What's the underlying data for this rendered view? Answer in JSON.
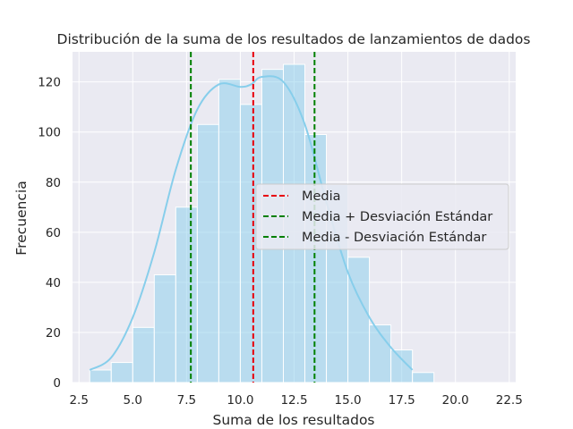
{
  "chart_data": {
    "type": "bar",
    "title": "Distribución de la suma de los resultados de lanzamientos de dados",
    "xlabel": "Suma de los resultados",
    "ylabel": "Frecuencia",
    "xlim": [
      2.2,
      22.8
    ],
    "ylim": [
      0,
      132
    ],
    "xticks": [
      2.5,
      5.0,
      7.5,
      10.0,
      12.5,
      15.0,
      17.5,
      20.0,
      22.5
    ],
    "xtick_labels": [
      "2.5",
      "5.0",
      "7.5",
      "10.0",
      "12.5",
      "15.0",
      "17.5",
      "20.0",
      "22.5"
    ],
    "yticks": [
      0,
      20,
      40,
      60,
      80,
      100,
      120
    ],
    "ytick_labels": [
      "0",
      "20",
      "40",
      "60",
      "80",
      "100",
      "120"
    ],
    "grid": true,
    "bin_edges": [
      3,
      4,
      5,
      6,
      7,
      8,
      9,
      10,
      11,
      12,
      13,
      14,
      15,
      16,
      17,
      18,
      19,
      20,
      21,
      22
    ],
    "counts": [
      5,
      8,
      22,
      43,
      70,
      103,
      121,
      111,
      125,
      127,
      99,
      79,
      50,
      23,
      13,
      4,
      0,
      0,
      0
    ],
    "kde": {
      "x": [
        3.0,
        4.0,
        5.0,
        6.0,
        7.0,
        8.0,
        9.0,
        10.0,
        10.5,
        11.0,
        12.0,
        13.0,
        14.0,
        15.0,
        16.0,
        17.0,
        18.0
      ],
      "y": [
        5,
        10,
        26,
        52,
        85,
        109,
        119,
        118,
        119,
        122,
        120,
        103,
        72,
        44,
        26,
        14,
        5
      ]
    },
    "lines": [
      {
        "name": "Media",
        "x": 10.6,
        "color": "#e8000b",
        "style": "dashed"
      },
      {
        "name": "Media + Desviación Estándar",
        "x": 13.45,
        "color": "#008000",
        "style": "dashed"
      },
      {
        "name": "Media - Desviación Estándar",
        "x": 7.7,
        "color": "#008000",
        "style": "dashed"
      }
    ],
    "legend_position": "center-right",
    "colors": {
      "background": "#eaeaf2",
      "bar_fill": "#87ceeb",
      "kde_line": "#87ceeb",
      "grid": "#ffffff"
    }
  }
}
